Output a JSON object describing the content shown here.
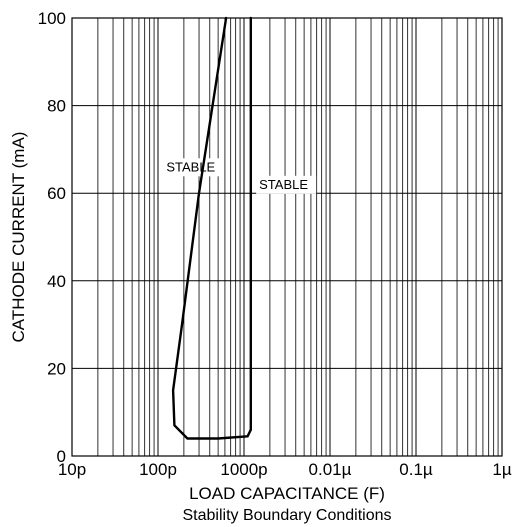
{
  "chart_data": {
    "type": "line",
    "xlabel": "LOAD CAPACITANCE (F)",
    "ylabel": "CATHODE CURRENT (mA)",
    "caption": "Stability Boundary Conditions",
    "x_scale": "log",
    "xlim": [
      1e-11,
      1e-06
    ],
    "ylim": [
      0,
      100
    ],
    "x_ticks": [
      {
        "value": 1e-11,
        "label": "10p"
      },
      {
        "value": 1e-10,
        "label": "100p"
      },
      {
        "value": 1e-09,
        "label": "1000p"
      },
      {
        "value": 1e-08,
        "label": "0.01µ"
      },
      {
        "value": 1e-07,
        "label": "0.1µ"
      },
      {
        "value": 1e-06,
        "label": "1µ"
      }
    ],
    "y_ticks": [
      {
        "value": 0,
        "label": "0"
      },
      {
        "value": 20,
        "label": "20"
      },
      {
        "value": 40,
        "label": "40"
      },
      {
        "value": 60,
        "label": "60"
      },
      {
        "value": 80,
        "label": "80"
      },
      {
        "value": 100,
        "label": "100"
      }
    ],
    "grid": true,
    "series": [
      {
        "x": [
          6.2e-10,
          3e-10,
          1.9e-10,
          1.5e-10,
          1.55e-10,
          2.2e-10,
          5e-10,
          1.1e-09,
          1.2e-09,
          1.2e-09,
          1.2e-09
        ],
        "y": [
          100,
          60,
          30,
          15,
          7,
          4,
          4,
          4.5,
          6,
          50,
          100
        ]
      }
    ],
    "annotations": [
      {
        "text": "STABLE",
        "x": 1.25e-10,
        "y": 65
      },
      {
        "text": "STABLE",
        "x": 1.5e-09,
        "y": 61
      }
    ]
  }
}
